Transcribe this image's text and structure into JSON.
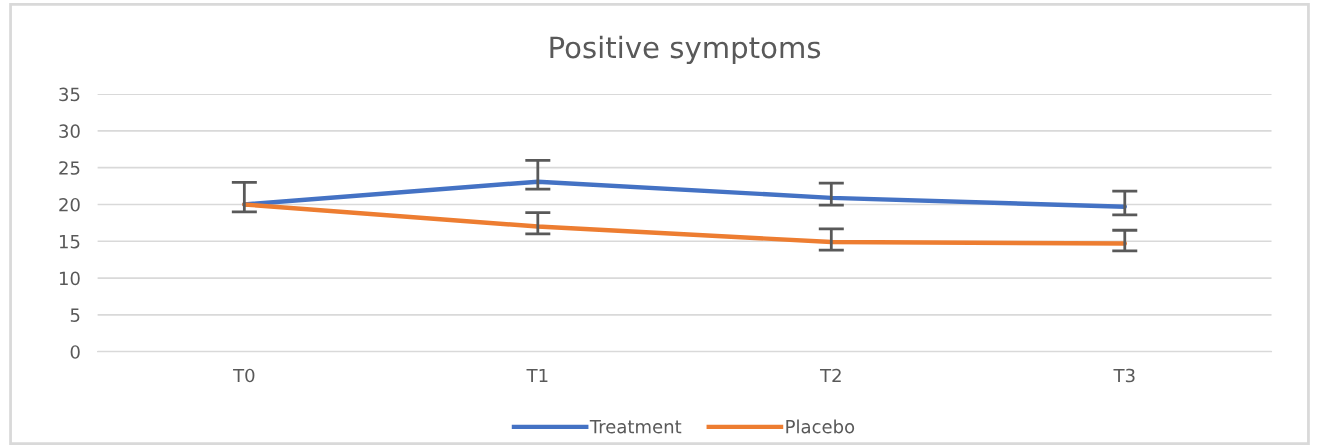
{
  "chart_data": {
    "type": "line",
    "title": "Positive symptoms",
    "categories": [
      "T0",
      "T1",
      "T2",
      "T3"
    ],
    "series": [
      {
        "name": "Treatment",
        "color": "#4472c4",
        "values": [
          20,
          23.1,
          20.9,
          19.7
        ],
        "errors": [
          [
            19,
            23
          ],
          [
            22.1,
            26
          ],
          [
            19.9,
            22.9
          ],
          [
            18.6,
            21.8
          ]
        ]
      },
      {
        "name": "Placebo",
        "color": "#ed7d31",
        "values": [
          20,
          17,
          14.9,
          14.7
        ],
        "errors": [
          null,
          [
            16,
            18.9
          ],
          [
            13.8,
            16.7
          ],
          [
            13.7,
            16.5
          ]
        ]
      }
    ],
    "ylim": [
      0,
      35
    ],
    "yticks": [
      0,
      5,
      10,
      15,
      20,
      25,
      30,
      35
    ],
    "grid": "y",
    "legend": "bottom",
    "marker": "none",
    "line_style": "solid"
  }
}
